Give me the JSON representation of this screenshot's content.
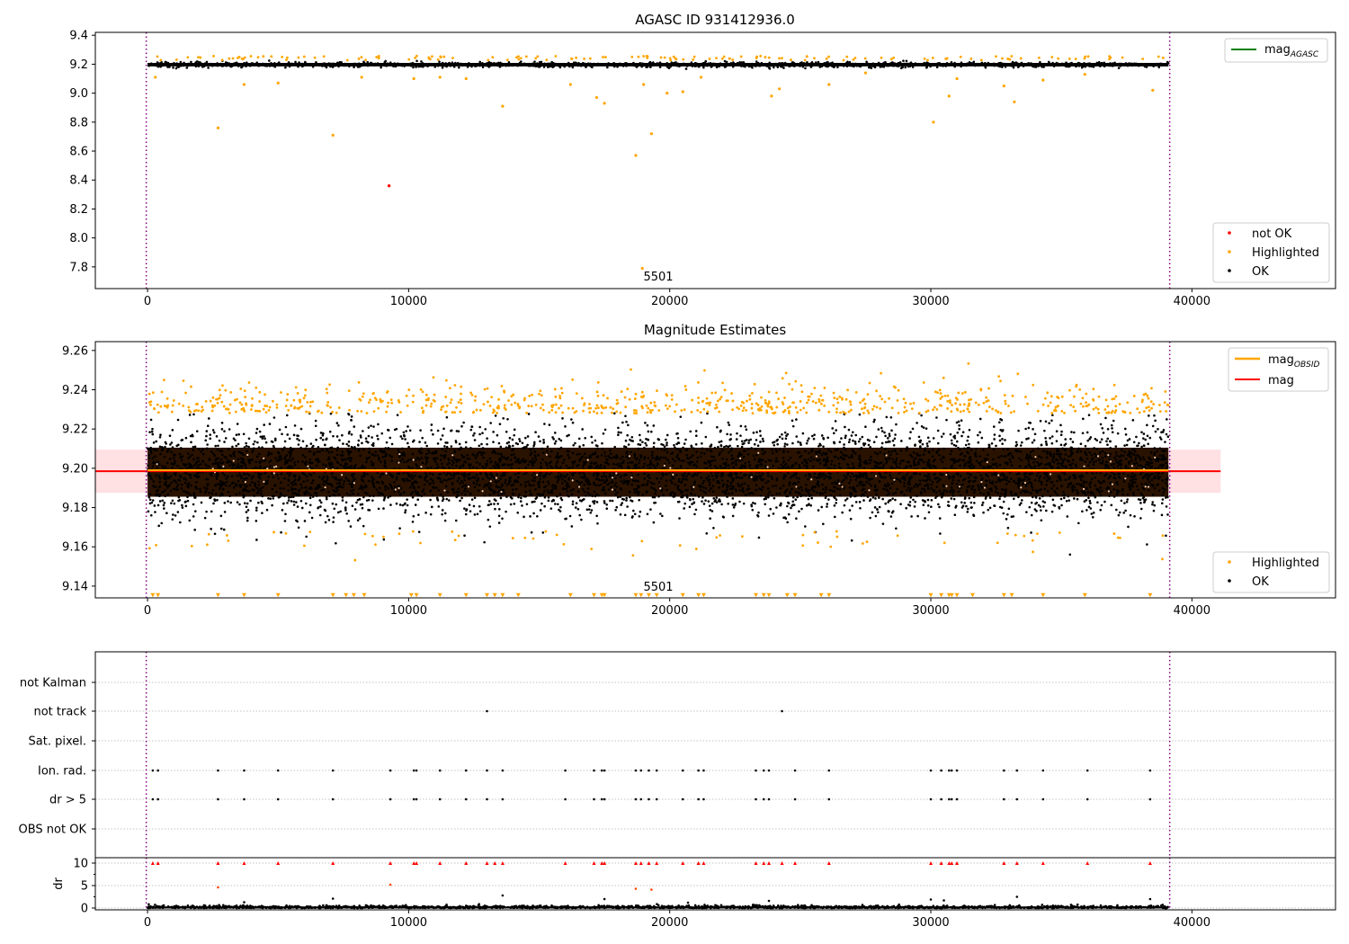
{
  "chart_data": [
    {
      "type": "scatter",
      "title": "AGASC ID 931412936.0",
      "xlim": [
        -2000,
        45500
      ],
      "ylim": [
        7.65,
        9.42
      ],
      "xticks": [
        0,
        10000,
        20000,
        30000,
        40000
      ],
      "yticks": [
        7.8,
        8.0,
        8.2,
        8.4,
        8.6,
        8.8,
        9.0,
        9.2,
        9.4
      ],
      "band_center": 9.197,
      "band_halfwidth": 0.012,
      "span": [
        -50,
        39150
      ],
      "annotation": {
        "text": "5501",
        "x": 19000,
        "y": 7.7
      },
      "legend_lines": [
        {
          "label": "mag",
          "sub": "AGASC",
          "color": "#008000"
        }
      ],
      "legend_markers": [
        {
          "label": "not OK",
          "color": "#ff0000"
        },
        {
          "label": "Highlighted",
          "color": "#ffa500"
        },
        {
          "label": "OK",
          "color": "#000000"
        }
      ],
      "series": [
        {
          "name": "not OK",
          "color": "#ff0000",
          "points": [
            [
              9250,
              8.36
            ]
          ]
        },
        {
          "name": "Highlighted",
          "color": "#ffa500",
          "points": [
            [
              2700,
              8.76
            ],
            [
              7100,
              8.71
            ],
            [
              13600,
              8.91
            ],
            [
              17200,
              8.97
            ],
            [
              17500,
              8.93
            ],
            [
              18700,
              8.57
            ],
            [
              19300,
              8.72
            ],
            [
              18950,
              7.79
            ],
            [
              19900,
              9.0
            ],
            [
              20500,
              9.01
            ],
            [
              23900,
              8.98
            ],
            [
              24200,
              9.03
            ],
            [
              30100,
              8.8
            ],
            [
              30700,
              8.98
            ],
            [
              31000,
              9.1
            ],
            [
              32800,
              9.05
            ],
            [
              33200,
              8.94
            ],
            [
              34300,
              9.09
            ],
            [
              38500,
              9.02
            ],
            [
              300,
              9.11
            ],
            [
              3700,
              9.06
            ],
            [
              5000,
              9.07
            ],
            [
              8200,
              9.11
            ],
            [
              10200,
              9.1
            ],
            [
              11200,
              9.11
            ],
            [
              12200,
              9.1
            ],
            [
              16200,
              9.06
            ],
            [
              19000,
              9.06
            ],
            [
              21200,
              9.11
            ],
            [
              26100,
              9.06
            ],
            [
              27500,
              9.14
            ],
            [
              35900,
              9.13
            ]
          ]
        }
      ]
    },
    {
      "type": "scatter",
      "title": "Magnitude Estimates",
      "xlim": [
        -2000,
        45500
      ],
      "ylim": [
        9.134,
        9.2645
      ],
      "xticks": [
        0,
        10000,
        20000,
        30000,
        40000
      ],
      "yticks": [
        9.14,
        9.16,
        9.18,
        9.2,
        9.22,
        9.24,
        9.26
      ],
      "mag": 9.1985,
      "mag_obsid": 9.199,
      "band": [
        9.1875,
        9.2095
      ],
      "band_xlim": [
        -2000,
        41100
      ],
      "span": [
        -50,
        39150
      ],
      "annotation": {
        "text": "5501",
        "x": 19000,
        "y": 9.1375
      },
      "legend_lines": [
        {
          "label": "mag",
          "sub": "OBSID",
          "color": "#ffa500"
        },
        {
          "label": "mag",
          "sub": "",
          "color": "#ff0000"
        }
      ],
      "legend_markers": [
        {
          "label": "Highlighted",
          "color": "#ffa500"
        },
        {
          "label": "OK",
          "color": "#000000"
        }
      ],
      "lower_limit_markers_x": [
        200,
        400,
        2700,
        3700,
        5000,
        7100,
        7600,
        7900,
        8300,
        10100,
        10300,
        11200,
        12200,
        13000,
        13300,
        13600,
        14200,
        16200,
        17100,
        17400,
        17500,
        18700,
        18900,
        19200,
        19500,
        20500,
        21100,
        21300,
        23300,
        23600,
        23800,
        24500,
        24800,
        25800,
        26100,
        30000,
        30400,
        30700,
        30800,
        31000,
        31600,
        32800,
        33100,
        34300,
        35900,
        38400
      ]
    },
    {
      "type": "scatter",
      "title": "",
      "xlim": [
        -2000,
        45500
      ],
      "xticks": [
        0,
        10000,
        20000,
        30000,
        40000
      ],
      "categories": [
        "not Kalman",
        "not track",
        "Sat. pixel.",
        "Ion. rad.",
        "dr > 5",
        "OBS not OK"
      ],
      "flag_points": {
        "not track": [
          13000,
          24300
        ],
        "Ion. rad.": [
          200,
          400,
          2700,
          3700,
          5000,
          7100,
          9300,
          10200,
          10300,
          11200,
          12200,
          13000,
          13600,
          16000,
          17100,
          17400,
          17500,
          18700,
          18900,
          19200,
          19500,
          20500,
          21100,
          21300,
          23300,
          23600,
          23800,
          24800,
          26100,
          30000,
          30400,
          30700,
          30800,
          31000,
          32800,
          33300,
          34300,
          36000,
          38400
        ],
        "dr > 5": [
          200,
          400,
          2700,
          3700,
          5000,
          7100,
          9300,
          10200,
          10300,
          11200,
          12200,
          13000,
          13600,
          16000,
          17100,
          17400,
          17500,
          18700,
          18900,
          19200,
          19500,
          20500,
          21100,
          21300,
          23300,
          23600,
          23800,
          24800,
          26100,
          30000,
          30400,
          30700,
          30800,
          31000,
          32800,
          33300,
          34300,
          36000,
          38400
        ]
      },
      "span": [
        -50,
        39150
      ]
    },
    {
      "type": "scatter",
      "title": "",
      "xlim": [
        -2000,
        45500
      ],
      "ylim": [
        -0.4,
        11.2
      ],
      "xticks": [
        0,
        10000,
        20000,
        30000,
        40000
      ],
      "yticks": [
        0,
        5,
        10
      ],
      "ylabel": "dr",
      "gridlines_y": [
        0,
        5,
        10
      ],
      "span": [
        -50,
        39150
      ],
      "capped_markers_x": [
        200,
        400,
        2700,
        3700,
        5000,
        7100,
        9300,
        10200,
        10300,
        11200,
        12200,
        13000,
        13300,
        13600,
        16000,
        17100,
        17400,
        17500,
        18700,
        18900,
        19200,
        19500,
        20500,
        21100,
        21300,
        23300,
        23600,
        23800,
        24300,
        24800,
        26100,
        30000,
        30400,
        30700,
        30800,
        31000,
        32800,
        33300,
        34300,
        36000,
        38400
      ],
      "outliers": [
        [
          2700,
          4.6
        ],
        [
          9300,
          5.2
        ],
        [
          18700,
          4.3
        ],
        [
          19300,
          4.1
        ],
        [
          7100,
          2.1
        ],
        [
          13600,
          2.8
        ],
        [
          17500,
          2.0
        ],
        [
          33300,
          2.5
        ],
        [
          38400,
          2.0
        ],
        [
          3700,
          1.3
        ],
        [
          23800,
          1.6
        ],
        [
          30000,
          1.9
        ],
        [
          30500,
          1.7
        ],
        [
          20700,
          1.2
        ]
      ]
    }
  ],
  "x_tick_labels": [
    "0",
    "10000",
    "20000",
    "30000",
    "40000"
  ]
}
